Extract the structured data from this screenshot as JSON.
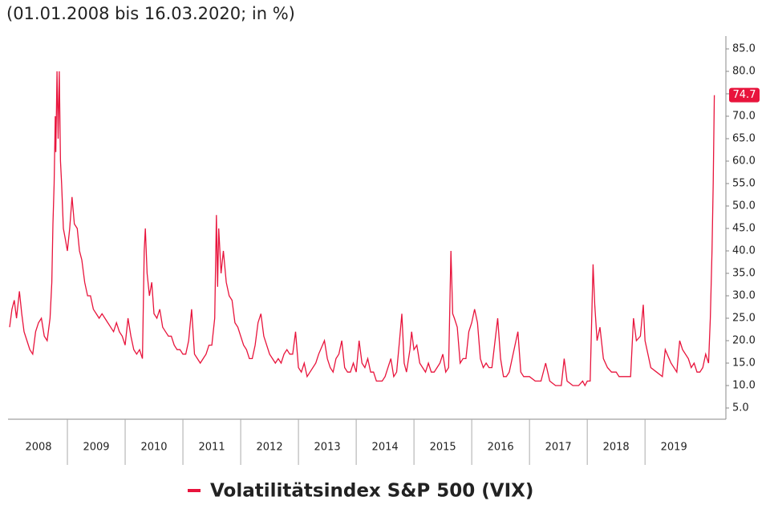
{
  "chart_data": {
    "type": "line",
    "title": "(01.01.2008 bis 16.03.2020; in %)",
    "xlim": [
      2008,
      2020.4
    ],
    "xticks": [
      {
        "value": 2008,
        "label": "2008"
      },
      {
        "value": 2009,
        "label": "2009"
      },
      {
        "value": 2010,
        "label": "2010"
      },
      {
        "value": 2011,
        "label": "2011"
      },
      {
        "value": 2012,
        "label": "2012"
      },
      {
        "value": 2013,
        "label": "2013"
      },
      {
        "value": 2014,
        "label": "2014"
      },
      {
        "value": 2015,
        "label": "2015"
      },
      {
        "value": 2016,
        "label": "2016"
      },
      {
        "value": 2017,
        "label": "2017"
      },
      {
        "value": 2018,
        "label": "2018"
      },
      {
        "value": 2019,
        "label": "2019"
      }
    ],
    "ylim": [
      2.5,
      87.5
    ],
    "yticks": [
      {
        "value": 5,
        "label": "5.0"
      },
      {
        "value": 10,
        "label": "10.0"
      },
      {
        "value": 15,
        "label": "15.0"
      },
      {
        "value": 20,
        "label": "20.0"
      },
      {
        "value": 25,
        "label": "25.0"
      },
      {
        "value": 30,
        "label": "30.0"
      },
      {
        "value": 35,
        "label": "35.0"
      },
      {
        "value": 40,
        "label": "40.0"
      },
      {
        "value": 45,
        "label": "45.0"
      },
      {
        "value": 50,
        "label": "50.0"
      },
      {
        "value": 55,
        "label": "55.0"
      },
      {
        "value": 60,
        "label": "60.0"
      },
      {
        "value": 65,
        "label": "65.0"
      },
      {
        "value": 70,
        "label": "70.0"
      },
      {
        "value": 75,
        "label": "75.0"
      },
      {
        "value": 80,
        "label": "80.0"
      },
      {
        "value": 85,
        "label": "85.0"
      }
    ],
    "end_label": "74.7",
    "series": [
      {
        "name": "Volatilitätsindex S&P 500 (VIX)",
        "color": "#e8143c",
        "x": [
          2008.0,
          2008.04,
          2008.08,
          2008.12,
          2008.17,
          2008.21,
          2008.25,
          2008.3,
          2008.35,
          2008.4,
          2008.45,
          2008.5,
          2008.55,
          2008.6,
          2008.65,
          2008.7,
          2008.73,
          2008.75,
          2008.77,
          2008.79,
          2008.8,
          2008.82,
          2008.84,
          2008.86,
          2008.88,
          2008.9,
          2008.93,
          2008.96,
          2009.0,
          2009.04,
          2009.08,
          2009.12,
          2009.17,
          2009.21,
          2009.25,
          2009.3,
          2009.35,
          2009.4,
          2009.45,
          2009.5,
          2009.55,
          2009.6,
          2009.65,
          2009.7,
          2009.75,
          2009.8,
          2009.85,
          2009.9,
          2009.95,
          2010.0,
          2010.05,
          2010.1,
          2010.15,
          2010.2,
          2010.25,
          2010.3,
          2010.33,
          2010.35,
          2010.38,
          2010.42,
          2010.46,
          2010.5,
          2010.55,
          2010.6,
          2010.65,
          2010.7,
          2010.75,
          2010.8,
          2010.85,
          2010.9,
          2010.95,
          2011.0,
          2011.05,
          2011.1,
          2011.15,
          2011.2,
          2011.25,
          2011.3,
          2011.35,
          2011.4,
          2011.45,
          2011.5,
          2011.55,
          2011.58,
          2011.6,
          2011.62,
          2011.66,
          2011.7,
          2011.75,
          2011.8,
          2011.85,
          2011.9,
          2011.95,
          2012.0,
          2012.05,
          2012.1,
          2012.15,
          2012.2,
          2012.25,
          2012.3,
          2012.35,
          2012.4,
          2012.45,
          2012.5,
          2012.55,
          2012.6,
          2012.65,
          2012.7,
          2012.75,
          2012.8,
          2012.85,
          2012.9,
          2012.95,
          2013.0,
          2013.05,
          2013.1,
          2013.15,
          2013.2,
          2013.3,
          2013.35,
          2013.45,
          2013.5,
          2013.55,
          2013.6,
          2013.65,
          2013.7,
          2013.75,
          2013.8,
          2013.85,
          2013.9,
          2013.95,
          2014.0,
          2014.05,
          2014.1,
          2014.15,
          2014.2,
          2014.25,
          2014.3,
          2014.35,
          2014.4,
          2014.45,
          2014.5,
          2014.55,
          2014.6,
          2014.65,
          2014.7,
          2014.75,
          2014.79,
          2014.83,
          2014.87,
          2014.93,
          2014.96,
          2015.0,
          2015.05,
          2015.1,
          2015.15,
          2015.2,
          2015.25,
          2015.3,
          2015.35,
          2015.4,
          2015.45,
          2015.5,
          2015.55,
          2015.6,
          2015.64,
          2015.67,
          2015.7,
          2015.75,
          2015.8,
          2015.85,
          2015.9,
          2015.95,
          2016.0,
          2016.05,
          2016.1,
          2016.15,
          2016.2,
          2016.25,
          2016.3,
          2016.35,
          2016.45,
          2016.5,
          2016.55,
          2016.6,
          2016.65,
          2016.7,
          2016.8,
          2016.85,
          2016.9,
          2016.95,
          2017.0,
          2017.1,
          2017.2,
          2017.28,
          2017.35,
          2017.45,
          2017.55,
          2017.6,
          2017.65,
          2017.75,
          2017.85,
          2017.92,
          2017.96,
          2018.0,
          2018.05,
          2018.1,
          2018.13,
          2018.17,
          2018.22,
          2018.28,
          2018.35,
          2018.42,
          2018.5,
          2018.55,
          2018.63,
          2018.75,
          2018.8,
          2018.85,
          2018.92,
          2018.97,
          2019.0,
          2019.05,
          2019.1,
          2019.2,
          2019.3,
          2019.35,
          2019.45,
          2019.55,
          2019.6,
          2019.65,
          2019.75,
          2019.8,
          2019.85,
          2019.9,
          2019.95,
          2020.0,
          2020.05,
          2020.1,
          2020.13,
          2020.16,
          2020.18,
          2020.2
        ],
        "values": [
          23,
          27,
          29,
          25,
          31,
          26,
          22,
          20,
          18,
          17,
          22,
          24,
          25,
          21,
          20,
          25,
          33,
          46,
          55,
          70,
          62,
          80,
          65,
          80,
          60,
          55,
          45,
          43,
          40,
          45,
          52,
          46,
          45,
          40,
          38,
          33,
          30,
          30,
          27,
          26,
          25,
          26,
          25,
          24,
          23,
          22,
          24,
          22,
          21,
          19,
          25,
          21,
          18,
          17,
          18,
          16,
          40,
          45,
          35,
          30,
          33,
          26,
          25,
          27,
          23,
          22,
          21,
          21,
          19,
          18,
          18,
          17,
          17,
          20,
          27,
          17,
          16,
          15,
          16,
          17,
          19,
          19,
          25,
          48,
          32,
          45,
          35,
          40,
          33,
          30,
          29,
          24,
          23,
          21,
          19,
          18,
          16,
          16,
          19,
          24,
          26,
          21,
          19,
          17,
          16,
          15,
          16,
          15,
          17,
          18,
          17,
          17,
          22,
          14,
          13,
          15,
          12,
          13,
          15,
          17,
          20,
          16,
          14,
          13,
          16,
          17,
          20,
          14,
          13,
          13,
          15,
          13,
          20,
          15,
          14,
          16,
          13,
          13,
          11,
          11,
          11,
          12,
          14,
          16,
          12,
          13,
          20,
          26,
          15,
          13,
          18,
          22,
          18,
          19,
          15,
          14,
          13,
          15,
          13,
          13,
          14,
          15,
          17,
          13,
          14,
          40,
          26,
          25,
          23,
          15,
          16,
          16,
          22,
          24,
          27,
          24,
          16,
          14,
          15,
          14,
          14,
          25,
          16,
          12,
          12,
          13,
          16,
          22,
          13,
          12,
          12,
          12,
          11,
          11,
          15,
          11,
          10,
          10,
          16,
          11,
          10,
          10,
          11,
          10,
          11,
          11,
          37,
          28,
          20,
          23,
          16,
          14,
          13,
          13,
          12,
          12,
          12,
          25,
          20,
          21,
          28,
          20,
          17,
          14,
          13,
          12,
          18,
          15,
          13,
          20,
          18,
          16,
          14,
          15,
          13,
          13,
          14,
          17,
          15,
          25,
          40,
          55,
          74.7
        ]
      }
    ]
  }
}
